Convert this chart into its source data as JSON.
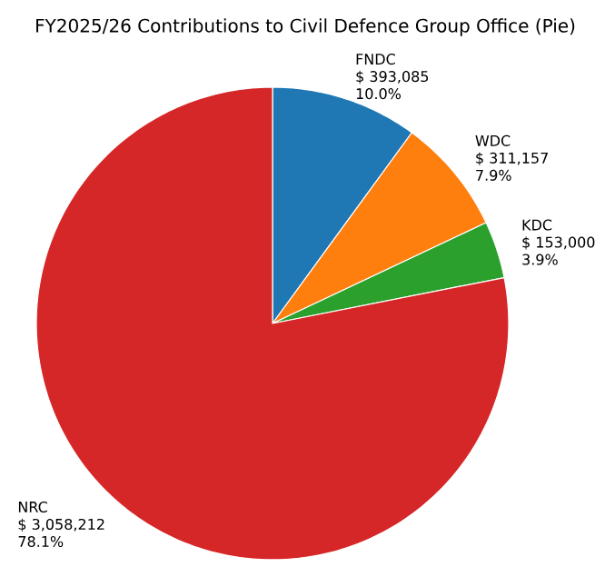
{
  "chart_data": {
    "type": "pie",
    "title": "FY2025/26 Contributions to Civil Defence Group Office (Pie)",
    "categories": [
      "FNDC",
      "WDC",
      "KDC",
      "NRC"
    ],
    "values": [
      393085,
      311157,
      153000,
      3058212
    ],
    "colors": [
      "#1f77b4",
      "#ff7f0e",
      "#2ca02c",
      "#d62728"
    ],
    "value_labels": [
      "$ 393,085",
      "$ 311,157",
      "$ 153,000",
      "$ 3,058,212"
    ],
    "annotations": [
      "10.0%",
      "7.9%",
      "3.9%",
      "78.1%"
    ]
  }
}
